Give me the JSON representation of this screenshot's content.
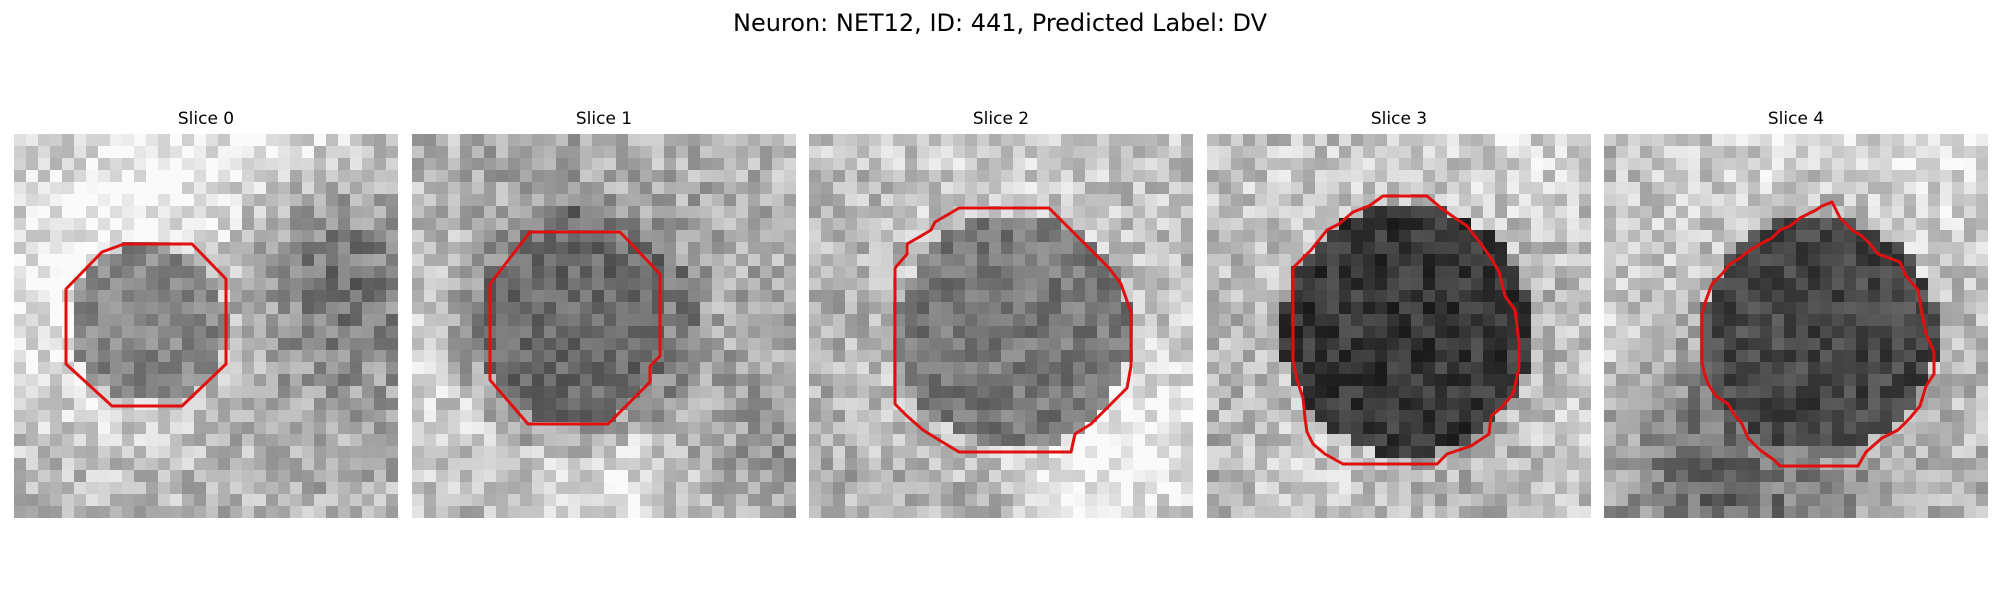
{
  "figure": {
    "title": "Neuron: NET12, ID: 441, Predicted Label: DV"
  },
  "panels": [
    {
      "title": "Slice 0",
      "contour_color": "#e01010"
    },
    {
      "title": "Slice 1",
      "contour_color": "#e01010"
    },
    {
      "title": "Slice 2",
      "contour_color": "#e01010"
    },
    {
      "title": "Slice 3",
      "contour_color": "#e01010"
    },
    {
      "title": "Slice 4",
      "contour_color": "#e01010"
    }
  ]
}
